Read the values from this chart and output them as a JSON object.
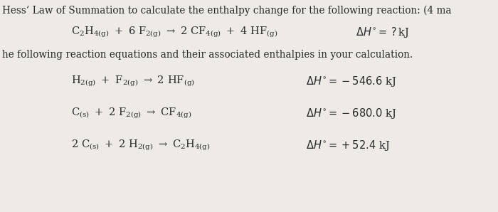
{
  "bg_color": "#eeebe6",
  "text_color": "#2a2a2a",
  "line1": "Hess’ Law of Summation to calculate the enthalpy change for the following reaction: (4 ma",
  "line3": "he following reaction equations and their associated enthalpies in your calculation.",
  "figwidth": 7.0,
  "figheight": 2.98,
  "dpi": 100,
  "header_fs": 9.8,
  "eq_fs": 10.5,
  "body_fs": 9.8
}
